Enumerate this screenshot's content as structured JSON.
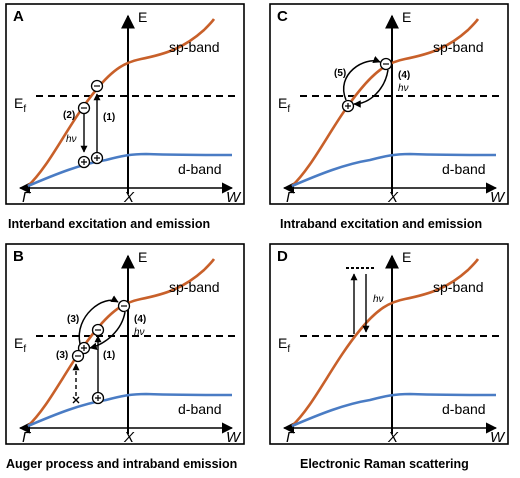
{
  "panels": [
    {
      "id": "A",
      "caption": "Interband excitation and emission"
    },
    {
      "id": "C",
      "caption": "Intraband excitation and emission"
    },
    {
      "id": "B",
      "caption": "Auger process and intraband emission"
    },
    {
      "id": "D",
      "caption": "Electronic Raman scattering"
    }
  ],
  "axes": {
    "energy": "E",
    "fermi_main": "E",
    "fermi_sub": "f",
    "gamma": "Γ",
    "x_point": "X",
    "w_point": "W"
  },
  "bands": {
    "sp": "sp-band",
    "d": "d-band"
  },
  "colors": {
    "sp_band": "#c8602a",
    "d_band": "#4a7cc4",
    "frame": "#000000"
  },
  "labels": {
    "A": {
      "s1": "(1)",
      "s2": "(2)",
      "hv": "hν"
    },
    "C": {
      "s4": "(4)",
      "s5": "(5)",
      "hv": "hν"
    },
    "B": {
      "s1": "(1)",
      "s3a": "(3)",
      "s3b": "(3)",
      "s4": "(4)",
      "hv": "hν"
    },
    "D": {
      "hv": "hν"
    }
  }
}
